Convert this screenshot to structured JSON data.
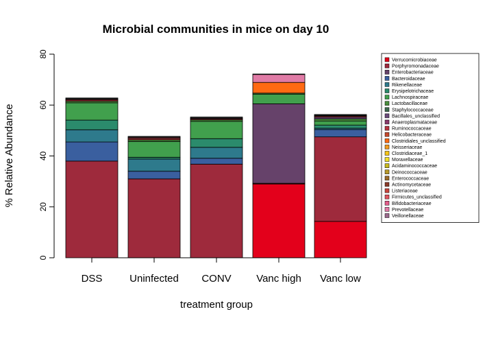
{
  "chart_data": {
    "type": "bar",
    "stacked": true,
    "title": "Microbial communities in mice on day 10",
    "xlabel": "treatment group",
    "ylabel": "% Relative Abundance",
    "ylim": [
      0,
      80
    ],
    "yticks": [
      0,
      20,
      40,
      60,
      80
    ],
    "grid": false,
    "legend_position": "right",
    "categories": [
      "DSS",
      "Uninfected",
      "CONV",
      "Vanc high",
      "Vanc low"
    ],
    "series": [
      {
        "name": "Verrucomicrobiaceae",
        "color": "#E3001B",
        "values": [
          0,
          0,
          0,
          29,
          14.3
        ]
      },
      {
        "name": "Porphyromonadaceae",
        "color": "#9E2A3C",
        "values": [
          38,
          31,
          36.8,
          0.3,
          33.2
        ]
      },
      {
        "name": "Enterobacteriaceae",
        "color": "#66426A",
        "values": [
          0,
          0,
          0,
          31.2,
          0
        ]
      },
      {
        "name": "Bacteroidaceae",
        "color": "#3A5F9F",
        "values": [
          7.5,
          3,
          2.3,
          0,
          2.9
        ]
      },
      {
        "name": "Rikenellaceae",
        "color": "#2E7A8C",
        "values": [
          4.8,
          4.8,
          4.3,
          0,
          0.5
        ]
      },
      {
        "name": "Erysipelotrichaceae",
        "color": "#2B8B6C",
        "values": [
          3.8,
          0.7,
          3.4,
          0,
          1.2
        ]
      },
      {
        "name": "Lachnospiraceae",
        "color": "#41A04D",
        "values": [
          6.8,
          6.2,
          6.8,
          3.8,
          1.6
        ]
      },
      {
        "name": "Lactobacillaceae",
        "color": "#4A8F3E",
        "values": [
          0.6,
          0.6,
          0.6,
          0.4,
          0.9
        ]
      },
      {
        "name": "Staphylococcaceae",
        "color": "#3F6B4F",
        "values": [
          0,
          0,
          0,
          0,
          0
        ]
      },
      {
        "name": "Bacillales_unclassified",
        "color": "#6B4A7A",
        "values": [
          0,
          0,
          0,
          0,
          0.6
        ]
      },
      {
        "name": "Anaeroplasmataceae",
        "color": "#8A3A6B",
        "values": [
          0,
          0,
          0,
          0,
          0
        ]
      },
      {
        "name": "Ruminococcaceae",
        "color": "#B8353F",
        "values": [
          0.5,
          0.5,
          0.3,
          0,
          0.4
        ]
      },
      {
        "name": "Helicobacteraceae",
        "color": "#C64A2E",
        "values": [
          0,
          0,
          0,
          0,
          0
        ]
      },
      {
        "name": "Clostridiales_unclassified",
        "color": "#FF6A13",
        "values": [
          0,
          0,
          0,
          4.2,
          0
        ]
      },
      {
        "name": "Neisseriaceae",
        "color": "#F29B1E",
        "values": [
          0,
          0,
          0,
          0,
          0
        ]
      },
      {
        "name": "Clostridiaceae_1",
        "color": "#F5C518",
        "values": [
          0,
          0,
          0,
          0,
          0
        ]
      },
      {
        "name": "Moraxellaceae",
        "color": "#F2E02A",
        "values": [
          0,
          0,
          0,
          0,
          0
        ]
      },
      {
        "name": "Acidaminococcaceae",
        "color": "#C7B81E",
        "values": [
          0,
          0,
          0,
          0,
          0
        ]
      },
      {
        "name": "Deinococcaceae",
        "color": "#B99A2A",
        "values": [
          0,
          0,
          0,
          0,
          0
        ]
      },
      {
        "name": "Enterococcaceae",
        "color": "#9C6B2A",
        "values": [
          0,
          0,
          0,
          0,
          0
        ]
      },
      {
        "name": "Actinomycetaceae",
        "color": "#8A3B2A",
        "values": [
          0,
          0,
          0,
          0,
          0
        ]
      },
      {
        "name": "Listeriaceae",
        "color": "#C9463D",
        "values": [
          0,
          0,
          0,
          0,
          0
        ]
      },
      {
        "name": "Firmicutes_unclassified",
        "color": "#E0555F",
        "values": [
          0.3,
          0.4,
          0.3,
          0,
          0.2
        ]
      },
      {
        "name": "Bifidobacteriaceae",
        "color": "#E35D8A",
        "values": [
          0,
          0,
          0,
          0,
          0
        ]
      },
      {
        "name": "Prevotellaceae",
        "color": "#E07BA6",
        "values": [
          0,
          0,
          0,
          3.1,
          0
        ]
      },
      {
        "name": "Veillonellaceae",
        "color": "#9A6A8C",
        "values": [
          0,
          0,
          0,
          0,
          0
        ]
      }
    ],
    "topcap": [
      0.5,
      0.5,
      0.5,
      0.2,
      0.5
    ]
  }
}
